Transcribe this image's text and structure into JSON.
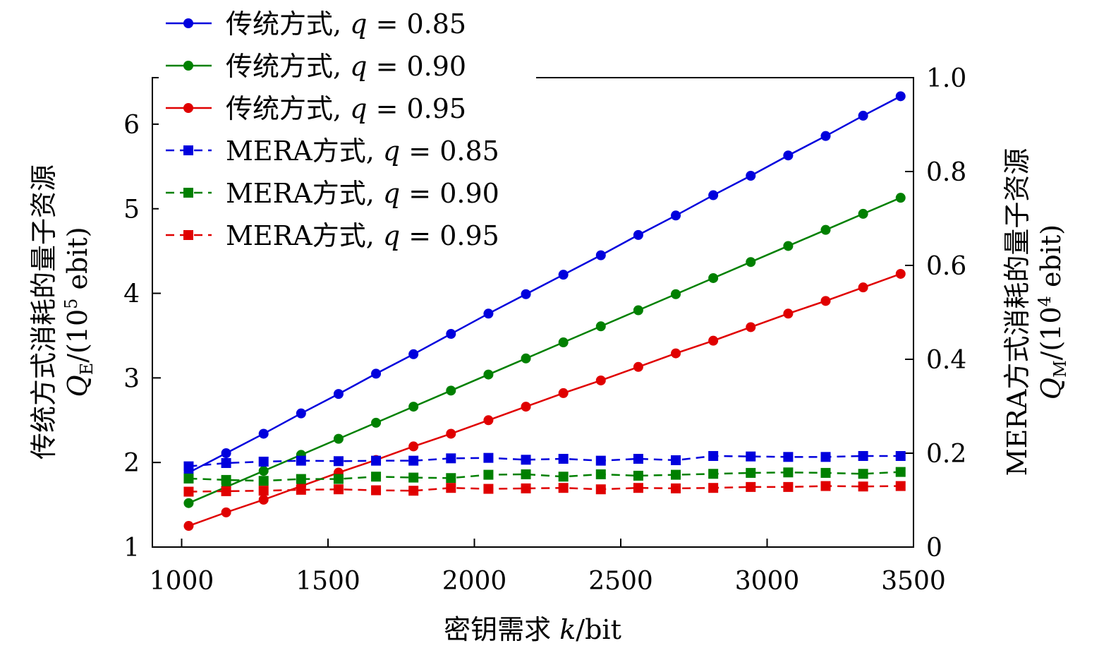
{
  "chart_data": {
    "type": "line",
    "xlabel": "密钥需求 k/bit",
    "ylabel_left": "传统方式消耗的量子资源 Q_E/(10^5 ebit)",
    "ylabel_right": "MERA方式消耗的量子资源 Q_M/(10^4 ebit)",
    "xlim": [
      900,
      3500
    ],
    "ylim_left": [
      1,
      6.55
    ],
    "ylim_right": [
      0,
      1.0
    ],
    "xticks": [
      "1000",
      "1500",
      "2000",
      "2500",
      "3000",
      "3500"
    ],
    "yticks_left": [
      "1",
      "2",
      "3",
      "4",
      "5",
      "6"
    ],
    "yticks_right": [
      "0",
      "0.2",
      "0.4",
      "0.6",
      "0.8",
      "1.0"
    ],
    "legend_position": "top-left",
    "x": [
      1024,
      1152,
      1280,
      1408,
      1536,
      1664,
      1792,
      1920,
      2048,
      2176,
      2304,
      2432,
      2560,
      2688,
      2816,
      2944,
      3072,
      3200,
      3328,
      3456
    ],
    "series": [
      {
        "name": "传统方式, q = 0.85",
        "axis": "left",
        "color": "#0000dd",
        "style": "solid",
        "marker": "circle",
        "values": [
          1.88,
          2.11,
          2.34,
          2.58,
          2.81,
          3.05,
          3.28,
          3.52,
          3.76,
          3.99,
          4.22,
          4.45,
          4.69,
          4.92,
          5.16,
          5.39,
          5.63,
          5.86,
          6.1,
          6.33
        ]
      },
      {
        "name": "传统方式, q = 0.90",
        "axis": "left",
        "color": "#008000",
        "style": "solid",
        "marker": "circle",
        "values": [
          1.52,
          1.71,
          1.9,
          2.09,
          2.28,
          2.47,
          2.66,
          2.85,
          3.04,
          3.23,
          3.42,
          3.61,
          3.8,
          3.99,
          4.18,
          4.37,
          4.56,
          4.75,
          4.94,
          5.13
        ]
      },
      {
        "name": "传统方式, q = 0.95",
        "axis": "left",
        "color": "#e00000",
        "style": "solid",
        "marker": "circle",
        "values": [
          1.25,
          1.41,
          1.56,
          1.72,
          1.88,
          2.03,
          2.19,
          2.34,
          2.5,
          2.66,
          2.82,
          2.97,
          3.13,
          3.29,
          3.44,
          3.6,
          3.76,
          3.91,
          4.07,
          4.23
        ]
      },
      {
        "name": "MERA方式, q = 0.85",
        "axis": "right",
        "color": "#0000dd",
        "style": "dashed",
        "marker": "square",
        "values": [
          0.172,
          0.179,
          0.182,
          0.184,
          0.183,
          0.184,
          0.184,
          0.189,
          0.19,
          0.186,
          0.188,
          0.184,
          0.188,
          0.185,
          0.194,
          0.193,
          0.192,
          0.192,
          0.194,
          0.194
        ]
      },
      {
        "name": "MERA方式, q = 0.90",
        "axis": "right",
        "color": "#008000",
        "style": "dashed",
        "marker": "square",
        "values": [
          0.146,
          0.143,
          0.141,
          0.145,
          0.145,
          0.15,
          0.148,
          0.147,
          0.154,
          0.155,
          0.15,
          0.155,
          0.152,
          0.154,
          0.156,
          0.158,
          0.159,
          0.158,
          0.156,
          0.16
        ]
      },
      {
        "name": "MERA方式, q = 0.95",
        "axis": "right",
        "color": "#e00000",
        "style": "dashed",
        "marker": "square",
        "values": [
          0.118,
          0.119,
          0.12,
          0.122,
          0.123,
          0.121,
          0.12,
          0.126,
          0.124,
          0.125,
          0.126,
          0.123,
          0.126,
          0.125,
          0.126,
          0.128,
          0.128,
          0.13,
          0.129,
          0.13
        ]
      }
    ]
  }
}
